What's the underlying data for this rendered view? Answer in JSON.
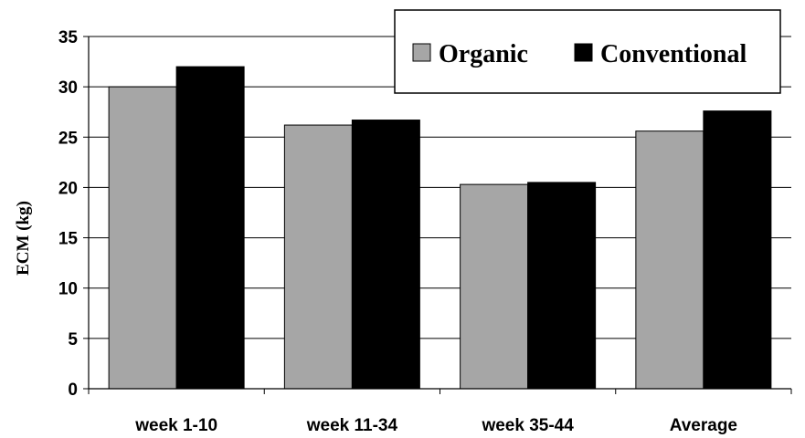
{
  "chart_data": {
    "type": "bar",
    "categories": [
      "week 1-10",
      "week 11-34",
      "week 35-44",
      "Average"
    ],
    "series": [
      {
        "name": "Organic",
        "values": [
          30.0,
          26.2,
          20.3,
          25.6
        ],
        "color": "#a6a6a6"
      },
      {
        "name": "Conventional",
        "values": [
          32.0,
          26.7,
          20.5,
          27.6
        ],
        "color": "#000000"
      }
    ],
    "ylabel": "ECM (kg)",
    "ylim": [
      0,
      35
    ],
    "yticks": [
      0,
      5,
      10,
      15,
      20,
      25,
      30,
      35
    ],
    "grid": true,
    "legend_position": "top-right"
  }
}
